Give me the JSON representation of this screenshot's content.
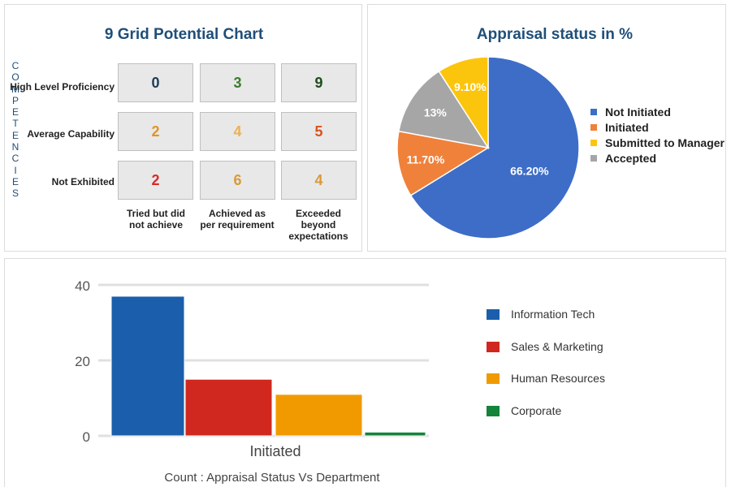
{
  "grid": {
    "title": "9 Grid Potential Chart",
    "side_label": [
      "C",
      "O",
      "M",
      "P",
      "E",
      "T",
      "E",
      "N",
      "C",
      "I",
      "E",
      "S"
    ],
    "rows": [
      {
        "label": "High Level Proficiency",
        "cells": [
          {
            "value": "0",
            "color": "#1f3b57"
          },
          {
            "value": "3",
            "color": "#3a7d2c"
          },
          {
            "value": "9",
            "color": "#1e4d1a"
          }
        ]
      },
      {
        "label": "Average Capability",
        "cells": [
          {
            "value": "2",
            "color": "#e0952a"
          },
          {
            "value": "4",
            "color": "#f0b050"
          },
          {
            "value": "5",
            "color": "#d9531e"
          }
        ]
      },
      {
        "label": "Not Exhibited",
        "cells": [
          {
            "value": "2",
            "color": "#d62b2b"
          },
          {
            "value": "6",
            "color": "#d99a3a"
          },
          {
            "value": "4",
            "color": "#d99a3a"
          }
        ]
      }
    ],
    "columns": [
      {
        "line1": "Tried but did",
        "line2": "not achieve"
      },
      {
        "line1": "Achieved as",
        "line2": "per requirement"
      },
      {
        "line1": "Exceeded beyond",
        "line2": "expectations"
      }
    ]
  },
  "pie": {
    "title": "Appraisal status in %",
    "legend": [
      {
        "label": "Not Initiated",
        "color": "#3d6dc7"
      },
      {
        "label": "Initiated",
        "color": "#f0813a"
      },
      {
        "label": "Submitted to Manager",
        "color": "#fcc50d"
      },
      {
        "label": "Accepted",
        "color": "#a6a6a6"
      }
    ]
  },
  "bar": {
    "legend": [
      {
        "label": "Information Tech",
        "color": "#1b5eab"
      },
      {
        "label": "Sales & Marketing",
        "color": "#d0281e"
      },
      {
        "label": "Human Resources",
        "color": "#f09a00"
      },
      {
        "label": "Corporate",
        "color": "#13843a"
      }
    ]
  },
  "chart_data": [
    {
      "type": "pie",
      "title": "Appraisal status in %",
      "labels": [
        "Not Initiated",
        "Initiated",
        "Accepted",
        "Submitted to Manager"
      ],
      "values": [
        66.2,
        11.7,
        13.0,
        9.1
      ],
      "value_labels": [
        "66.20%",
        "11.70%",
        "13%",
        "9.10%"
      ],
      "colors": [
        "#3d6dc7",
        "#f0813a",
        "#a6a6a6",
        "#fcc50d"
      ],
      "legend_position": "right"
    },
    {
      "type": "bar",
      "title": "Count : Appraisal Status Vs Department",
      "categories": [
        "Initiated"
      ],
      "series": [
        {
          "name": "Information Tech",
          "values": [
            37
          ],
          "color": "#1b5eab"
        },
        {
          "name": "Sales & Marketing",
          "values": [
            15
          ],
          "color": "#d0281e"
        },
        {
          "name": "Human Resources",
          "values": [
            11
          ],
          "color": "#f09a00"
        },
        {
          "name": "Corporate",
          "values": [
            1
          ],
          "color": "#13843a"
        }
      ],
      "yticks": [
        "0",
        "20",
        "40"
      ],
      "ylim": [
        0,
        40
      ],
      "xlabel": "Initiated",
      "legend_position": "right"
    }
  ]
}
